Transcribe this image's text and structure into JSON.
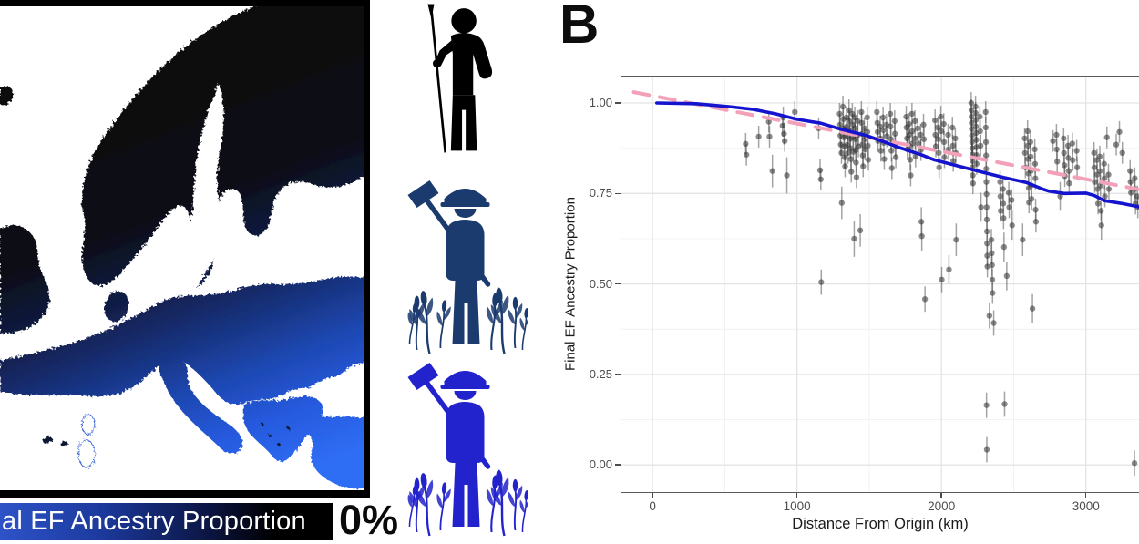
{
  "figure": {
    "panel_label": "B"
  },
  "map_panel": {
    "legend_bar_label": "al EF Ancestry Proportion",
    "legend_end_label": "0%",
    "legend_gradient": [
      "#2e53c8",
      "#1c3a9e",
      "#0c1644",
      "#000000"
    ],
    "land_gradient": [
      "#0a0a0a",
      "#0c0e18",
      "#111d46",
      "#173079",
      "#1d47b0",
      "#2659dd",
      "#2f6ef5"
    ],
    "colors": {
      "sea": "#ffffff",
      "frame": "#000000"
    }
  },
  "icons": [
    {
      "name": "hunter-gatherer",
      "color": "#000000"
    },
    {
      "name": "farmer-dark",
      "color": "#1b3a6e"
    },
    {
      "name": "farmer-blue",
      "color": "#2323cd"
    }
  ],
  "chart_data": {
    "type": "scatter",
    "title": "",
    "xlabel": "Distance From Origin (km)",
    "ylabel": "Final EF Ancestry Proportion",
    "xlim": [
      -215,
      3380
    ],
    "ylim": [
      -0.075,
      1.073
    ],
    "grid": true,
    "legend_position": "none",
    "x_ticks": [
      {
        "v": 0,
        "label": "0"
      },
      {
        "v": 1000,
        "label": "1000"
      },
      {
        "v": 2000,
        "label": "2000"
      },
      {
        "v": 3000,
        "label": "3000"
      }
    ],
    "y_ticks": [
      {
        "v": 1.0,
        "label": "1.00"
      },
      {
        "v": 0.75,
        "label": "0.75"
      },
      {
        "v": 0.5,
        "label": "0.50"
      },
      {
        "v": 0.25,
        "label": "0.25"
      },
      {
        "v": 0.0,
        "label": "0.00"
      }
    ],
    "x_minor": [
      500,
      1500,
      2500
    ],
    "y_minor": [
      0.125,
      0.375,
      0.625,
      0.875
    ],
    "point_style": {
      "color": "#2b2b2b",
      "opacity": 0.55,
      "radius": 3.2,
      "errorbar_color": "#4a4a4a",
      "default_error": 0.03
    },
    "points": [
      [
        645,
        0.887
      ],
      [
        650,
        0.857
      ],
      [
        735,
        0.907
      ],
      [
        805,
        0.948
      ],
      [
        810,
        0.907
      ],
      [
        830,
        0.812,
        0.045
      ],
      [
        900,
        0.937
      ],
      [
        905,
        0.96
      ],
      [
        910,
        0.915
      ],
      [
        915,
        0.895
      ],
      [
        930,
        0.8,
        0.05
      ],
      [
        985,
        0.975
      ],
      [
        1150,
        0.93
      ],
      [
        1160,
        0.814
      ],
      [
        1165,
        0.789
      ],
      [
        1168,
        0.505,
        0.035
      ],
      [
        1295,
        0.97
      ],
      [
        1298,
        0.94
      ],
      [
        1300,
        0.91
      ],
      [
        1303,
        0.885
      ],
      [
        1308,
        0.862
      ],
      [
        1310,
        0.724,
        0.045
      ],
      [
        1318,
        0.99
      ],
      [
        1320,
        0.955
      ],
      [
        1322,
        0.93
      ],
      [
        1325,
        0.905
      ],
      [
        1328,
        0.88
      ],
      [
        1330,
        0.85
      ],
      [
        1333,
        0.825
      ],
      [
        1343,
        0.96
      ],
      [
        1346,
        0.935
      ],
      [
        1348,
        0.91
      ],
      [
        1350,
        0.885
      ],
      [
        1353,
        0.862
      ],
      [
        1360,
        0.98
      ],
      [
        1363,
        0.95
      ],
      [
        1365,
        0.925
      ],
      [
        1368,
        0.9
      ],
      [
        1370,
        0.875
      ],
      [
        1373,
        0.845
      ],
      [
        1376,
        0.81
      ],
      [
        1383,
        0.97
      ],
      [
        1386,
        0.94
      ],
      [
        1388,
        0.905
      ],
      [
        1390,
        0.865
      ],
      [
        1396,
        0.625,
        0.05
      ],
      [
        1400,
        0.96
      ],
      [
        1402,
        0.93
      ],
      [
        1404,
        0.9
      ],
      [
        1407,
        0.87
      ],
      [
        1409,
        0.835
      ],
      [
        1412,
        0.795
      ],
      [
        1420,
        0.95
      ],
      [
        1422,
        0.912
      ],
      [
        1425,
        0.88
      ],
      [
        1438,
        0.648,
        0.045
      ],
      [
        1446,
        0.975
      ],
      [
        1448,
        0.945
      ],
      [
        1450,
        0.915
      ],
      [
        1453,
        0.885
      ],
      [
        1455,
        0.855
      ],
      [
        1458,
        0.825
      ],
      [
        1466,
        0.93
      ],
      [
        1468,
        0.9
      ],
      [
        1471,
        0.872
      ],
      [
        1486,
        0.96
      ],
      [
        1488,
        0.92
      ],
      [
        1491,
        0.882
      ],
      [
        1494,
        0.843
      ],
      [
        1553,
        0.975
      ],
      [
        1556,
        0.945
      ],
      [
        1558,
        0.92
      ],
      [
        1561,
        0.895
      ],
      [
        1576,
        0.935
      ],
      [
        1578,
        0.902
      ],
      [
        1581,
        0.868
      ],
      [
        1596,
        0.96
      ],
      [
        1598,
        0.925
      ],
      [
        1601,
        0.89
      ],
      [
        1604,
        0.845
      ],
      [
        1619,
        0.94
      ],
      [
        1622,
        0.908
      ],
      [
        1646,
        0.97
      ],
      [
        1648,
        0.935
      ],
      [
        1651,
        0.9
      ],
      [
        1654,
        0.868
      ],
      [
        1657,
        0.82
      ],
      [
        1676,
        0.95
      ],
      [
        1678,
        0.915
      ],
      [
        1681,
        0.882
      ],
      [
        1684,
        0.85
      ],
      [
        1756,
        0.962
      ],
      [
        1758,
        0.932
      ],
      [
        1761,
        0.902
      ],
      [
        1764,
        0.872
      ],
      [
        1776,
        0.942
      ],
      [
        1778,
        0.912
      ],
      [
        1781,
        0.88
      ],
      [
        1784,
        0.843
      ],
      [
        1787,
        0.8
      ],
      [
        1796,
        0.97
      ],
      [
        1798,
        0.922
      ],
      [
        1801,
        0.888
      ],
      [
        1816,
        0.95
      ],
      [
        1818,
        0.902
      ],
      [
        1821,
        0.852
      ],
      [
        1836,
        0.93
      ],
      [
        1839,
        0.888
      ],
      [
        1856,
        0.912
      ],
      [
        1858,
        0.87
      ],
      [
        1861,
        0.672,
        0.04
      ],
      [
        1864,
        0.632,
        0.04
      ],
      [
        1876,
        0.94
      ],
      [
        1879,
        0.9
      ],
      [
        1886,
        0.458,
        0.035
      ],
      [
        1956,
        0.952
      ],
      [
        1958,
        0.912
      ],
      [
        1961,
        0.88
      ],
      [
        1976,
        0.932
      ],
      [
        1978,
        0.9
      ],
      [
        1981,
        0.862
      ],
      [
        1984,
        0.822
      ],
      [
        1996,
        0.962
      ],
      [
        1999,
        0.922
      ],
      [
        2002,
        0.512,
        0.035
      ],
      [
        2016,
        0.942
      ],
      [
        2018,
        0.892
      ],
      [
        2021,
        0.85
      ],
      [
        2046,
        0.912
      ],
      [
        2049,
        0.872
      ],
      [
        2052,
        0.54,
        0.04
      ],
      [
        2076,
        0.932
      ],
      [
        2079,
        0.882
      ],
      [
        2082,
        0.84
      ],
      [
        2096,
        0.902
      ],
      [
        2099,
        0.862
      ],
      [
        2102,
        0.622,
        0.045
      ],
      [
        2206,
        1.0
      ],
      [
        2207,
        0.98
      ],
      [
        2208,
        0.962
      ],
      [
        2209,
        0.945
      ],
      [
        2210,
        0.928
      ],
      [
        2211,
        0.91
      ],
      [
        2212,
        0.892
      ],
      [
        2213,
        0.875
      ],
      [
        2214,
        0.858
      ],
      [
        2215,
        0.84
      ],
      [
        2216,
        0.822
      ],
      [
        2217,
        0.8
      ],
      [
        2218,
        0.778
      ],
      [
        2236,
        0.99
      ],
      [
        2237,
        0.972
      ],
      [
        2238,
        0.953
      ],
      [
        2239,
        0.935
      ],
      [
        2240,
        0.917
      ],
      [
        2241,
        0.898
      ],
      [
        2242,
        0.878
      ],
      [
        2243,
        0.856
      ],
      [
        2244,
        0.832
      ],
      [
        2266,
        0.962
      ],
      [
        2268,
        0.922
      ],
      [
        2271,
        0.882
      ],
      [
        2274,
        0.712,
        0.04
      ],
      [
        2306,
        0.975
      ],
      [
        2307,
        0.932
      ],
      [
        2308,
        0.892
      ],
      [
        2309,
        0.855
      ],
      [
        2310,
        0.818
      ],
      [
        2311,
        0.782
      ],
      [
        2312,
        0.748
      ],
      [
        2313,
        0.712
      ],
      [
        2314,
        0.678
      ],
      [
        2315,
        0.645
      ],
      [
        2316,
        0.612
      ],
      [
        2317,
        0.578
      ],
      [
        2318,
        0.548
      ],
      [
        2312,
        0.165,
        0.035
      ],
      [
        2314,
        0.042,
        0.035
      ],
      [
        2332,
        0.412,
        0.035
      ],
      [
        2346,
        0.622
      ],
      [
        2348,
        0.585
      ],
      [
        2350,
        0.552
      ],
      [
        2352,
        0.512
      ],
      [
        2354,
        0.475
      ],
      [
        2362,
        0.392,
        0.035
      ],
      [
        2406,
        0.782
      ],
      [
        2408,
        0.742
      ],
      [
        2410,
        0.702
      ],
      [
        2426,
        0.762
      ],
      [
        2428,
        0.722
      ],
      [
        2430,
        0.682
      ],
      [
        2433,
        0.602,
        0.04
      ],
      [
        2437,
        0.168,
        0.035
      ],
      [
        2452,
        0.522,
        0.04
      ],
      [
        2466,
        0.752
      ],
      [
        2469,
        0.712
      ],
      [
        2486,
        0.732
      ],
      [
        2489,
        0.662,
        0.04
      ],
      [
        2562,
        0.622,
        0.045
      ],
      [
        2576,
        0.902
      ],
      [
        2578,
        0.862
      ],
      [
        2581,
        0.822
      ],
      [
        2596,
        0.922
      ],
      [
        2598,
        0.882
      ],
      [
        2600,
        0.845
      ],
      [
        2602,
        0.805
      ],
      [
        2604,
        0.765
      ],
      [
        2606,
        0.725
      ],
      [
        2616,
        0.892
      ],
      [
        2618,
        0.852
      ],
      [
        2620,
        0.812
      ],
      [
        2622,
        0.772
      ],
      [
        2624,
        0.735
      ],
      [
        2630,
        0.432,
        0.04
      ],
      [
        2646,
        0.872
      ],
      [
        2648,
        0.832
      ],
      [
        2650,
        0.792
      ],
      [
        2652,
        0.705
      ],
      [
        2654,
        0.672
      ],
      [
        2772,
        0.895
      ],
      [
        2796,
        0.912
      ],
      [
        2798,
        0.872
      ],
      [
        2801,
        0.838
      ],
      [
        2822,
        0.742,
        0.04
      ],
      [
        2846,
        0.902
      ],
      [
        2848,
        0.862
      ],
      [
        2851,
        0.828
      ],
      [
        2854,
        0.798
      ],
      [
        2876,
        0.882
      ],
      [
        2878,
        0.848
      ],
      [
        2881,
        0.812
      ],
      [
        2884,
        0.778
      ],
      [
        2906,
        0.888
      ],
      [
        2909,
        0.842
      ],
      [
        2936,
        0.868
      ],
      [
        2939,
        0.822
      ],
      [
        3056,
        0.862
      ],
      [
        3058,
        0.822
      ],
      [
        3061,
        0.782
      ],
      [
        3076,
        0.842
      ],
      [
        3078,
        0.802
      ],
      [
        3081,
        0.762
      ],
      [
        3084,
        0.722
      ],
      [
        3096,
        0.852
      ],
      [
        3098,
        0.812
      ],
      [
        3101,
        0.772
      ],
      [
        3104,
        0.702
      ],
      [
        3107,
        0.662,
        0.04
      ],
      [
        3126,
        0.832
      ],
      [
        3128,
        0.792
      ],
      [
        3131,
        0.742
      ],
      [
        3145,
        0.905
      ],
      [
        3156,
        0.802
      ],
      [
        3159,
        0.762
      ],
      [
        3210,
        0.885
      ],
      [
        3232,
        0.92
      ],
      [
        3252,
        0.862
      ],
      [
        3306,
        0.812
      ],
      [
        3309,
        0.782
      ],
      [
        3312,
        0.752
      ],
      [
        3336,
        0.005,
        0.035
      ],
      [
        3338,
        0.792
      ],
      [
        3340,
        0.762
      ],
      [
        3343,
        0.722
      ],
      [
        3356,
        0.742
      ],
      [
        3359,
        0.712
      ]
    ],
    "series": [
      {
        "name": "linear-fit-dashed",
        "color": "#f2a1b8",
        "width": 4,
        "dash": [
          17,
          12
        ],
        "points": [
          [
            -130,
            1.03
          ],
          [
            3380,
            0.76
          ]
        ]
      },
      {
        "name": "smoothed-fit",
        "color": "#1414cf",
        "width": 3.6,
        "dash": null,
        "points": [
          [
            30,
            1.0
          ],
          [
            300,
            0.998
          ],
          [
            530,
            0.99
          ],
          [
            700,
            0.982
          ],
          [
            850,
            0.97
          ],
          [
            1000,
            0.955
          ],
          [
            1165,
            0.944
          ],
          [
            1300,
            0.928
          ],
          [
            1480,
            0.91
          ],
          [
            1600,
            0.893
          ],
          [
            1700,
            0.878
          ],
          [
            1860,
            0.857
          ],
          [
            1950,
            0.843
          ],
          [
            2114,
            0.826
          ],
          [
            2272,
            0.81
          ],
          [
            2430,
            0.794
          ],
          [
            2590,
            0.78
          ],
          [
            2700,
            0.762
          ],
          [
            2747,
            0.756
          ],
          [
            2850,
            0.75
          ],
          [
            3000,
            0.751
          ],
          [
            3060,
            0.744
          ],
          [
            3127,
            0.73
          ],
          [
            3253,
            0.722
          ],
          [
            3380,
            0.712
          ]
        ]
      }
    ]
  }
}
